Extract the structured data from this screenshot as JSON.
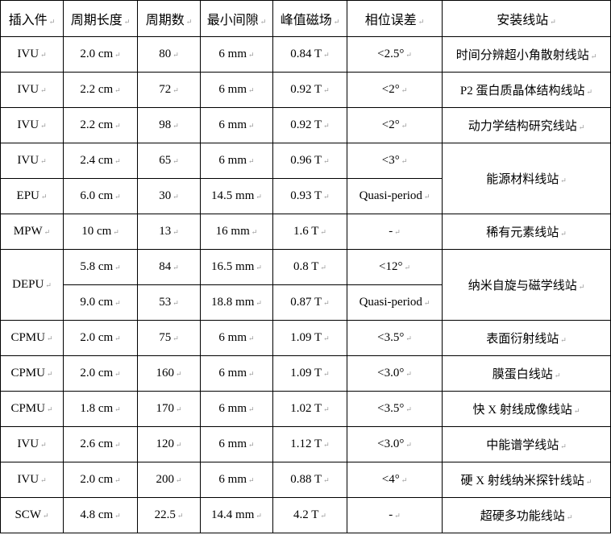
{
  "table": {
    "headers": [
      "插入件",
      "周期长度",
      "周期数",
      "最小间隙",
      "峰值磁场",
      "相位误差",
      "安装线站"
    ],
    "rows": [
      [
        "IVU",
        "2.0 cm",
        "80",
        "6 mm",
        "0.84 T",
        "<2.5°",
        "时间分辨超小角散射线站"
      ],
      [
        "IVU",
        "2.2 cm",
        "72",
        "6 mm",
        "0.92 T",
        "<2°",
        "P2 蛋白质晶体结构线站"
      ],
      [
        "IVU",
        "2.2 cm",
        "98",
        "6 mm",
        "0.92 T",
        "<2°",
        "动力学结构研究线站"
      ],
      [
        "IVU",
        "2.4 cm",
        "65",
        "6 mm",
        "0.96 T",
        "<3°",
        "能源材料线站"
      ],
      [
        "EPU",
        "6.0 cm",
        "30",
        "14.5 mm",
        "0.93 T",
        "Quasi-period",
        null
      ],
      [
        "MPW",
        "10 cm",
        "13",
        "16 mm",
        "1.6 T",
        "-",
        "稀有元素线站"
      ],
      [
        "DEPU",
        "5.8 cm",
        "84",
        "16.5 mm",
        "0.8 T",
        "<12°",
        "纳米自旋与磁学线站"
      ],
      [
        null,
        "9.0 cm",
        "53",
        "18.8 mm",
        "0.87 T",
        "Quasi-period",
        null
      ],
      [
        "CPMU",
        "2.0 cm",
        "75",
        "6 mm",
        "1.09 T",
        "<3.5°",
        "表面衍射线站"
      ],
      [
        "CPMU",
        "2.0 cm",
        "160",
        "6 mm",
        "1.09 T",
        "<3.0°",
        "膜蛋白线站"
      ],
      [
        "CPMU",
        "1.8 cm",
        "170",
        "6 mm",
        "1.02 T",
        "<3.5°",
        "快 X 射线成像线站"
      ],
      [
        "IVU",
        "2.6 cm",
        "120",
        "6 mm",
        "1.12 T",
        "<3.0°",
        "中能谱学线站"
      ],
      [
        "IVU",
        "2.0 cm",
        "200",
        "6 mm",
        "0.88 T",
        "<4°",
        "硬 X 射线纳米探针线站"
      ],
      [
        "SCW",
        "4.8 cm",
        "22.5",
        "14.4 mm",
        "4.2 T",
        "-",
        "超硬多功能线站"
      ]
    ]
  }
}
